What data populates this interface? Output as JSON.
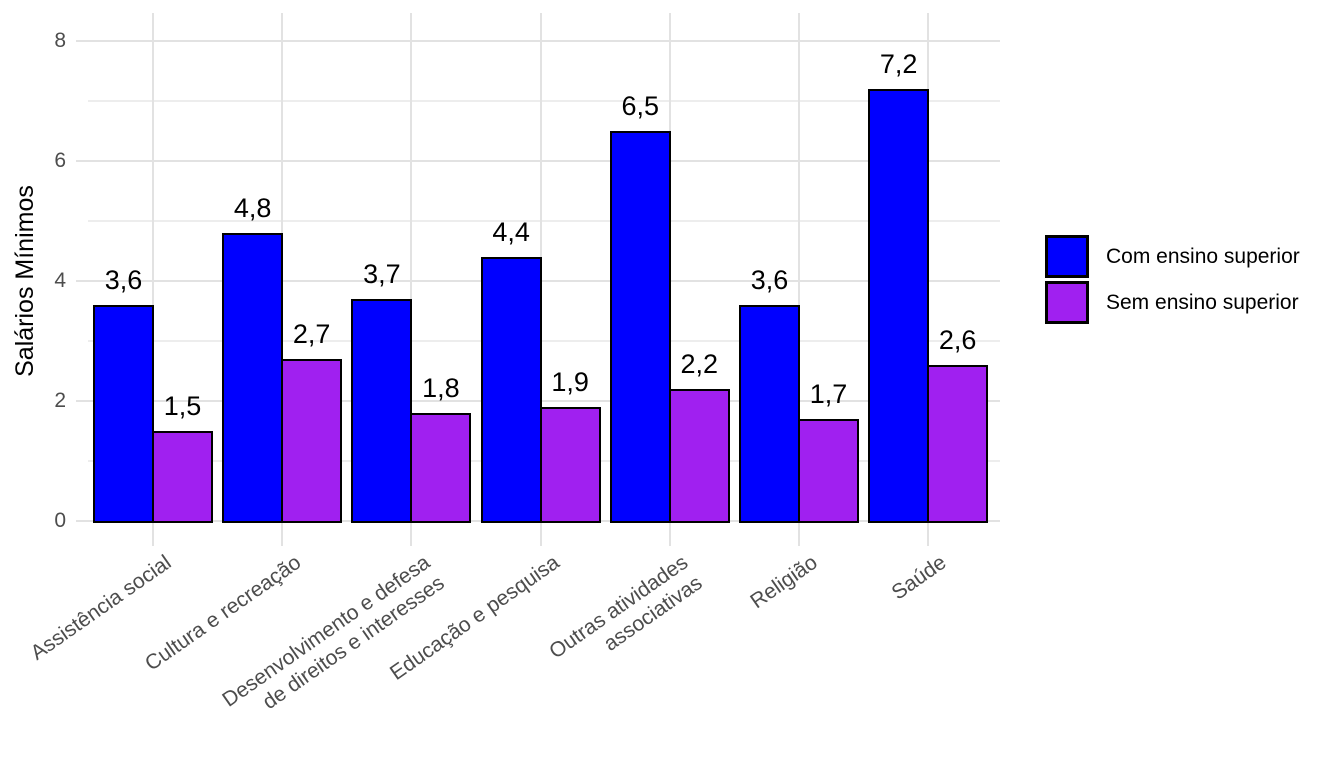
{
  "chart_data": {
    "type": "bar",
    "title": "",
    "ylabel": "Salários Mínimos",
    "xlabel": "",
    "ylim": [
      0,
      8
    ],
    "ytick_values": [
      0,
      2,
      4,
      6,
      8
    ],
    "ytick_labels": [
      "0",
      "2",
      "4",
      "6",
      "8"
    ],
    "yminor_values": [
      1,
      3,
      5,
      7
    ],
    "categories": [
      "Assistência social",
      "Cultura e recreação",
      "Desenvolvimento e defesa\nde direitos e interesses",
      "Educação e pesquisa",
      "Outras atividades\nassociativas",
      "Religião",
      "Saúde"
    ],
    "series": [
      {
        "name": "Com ensino superior",
        "color": "#0000FF",
        "values": [
          3.6,
          4.8,
          3.7,
          4.4,
          6.5,
          3.6,
          7.2
        ],
        "value_labels": [
          "3,6",
          "4,8",
          "3,7",
          "4,4",
          "6,5",
          "3,6",
          "7,2"
        ]
      },
      {
        "name": "Sem ensino superior",
        "color": "#A020F0",
        "values": [
          1.5,
          2.7,
          1.8,
          1.9,
          2.2,
          1.7,
          2.6
        ],
        "value_labels": [
          "1,5",
          "2,7",
          "1,8",
          "1,9",
          "2,2",
          "1,7",
          "2,6"
        ]
      }
    ],
    "legend_position": "right",
    "grid": true,
    "decimal_separator": ",",
    "colors": {
      "background": "#FFFFFF",
      "bar_outline": "#000000",
      "axis_text": "#4D4D4D",
      "value_label_text": "#000000",
      "grid_major": "#E2E2E2",
      "grid_minor": "#EDEDED"
    }
  }
}
